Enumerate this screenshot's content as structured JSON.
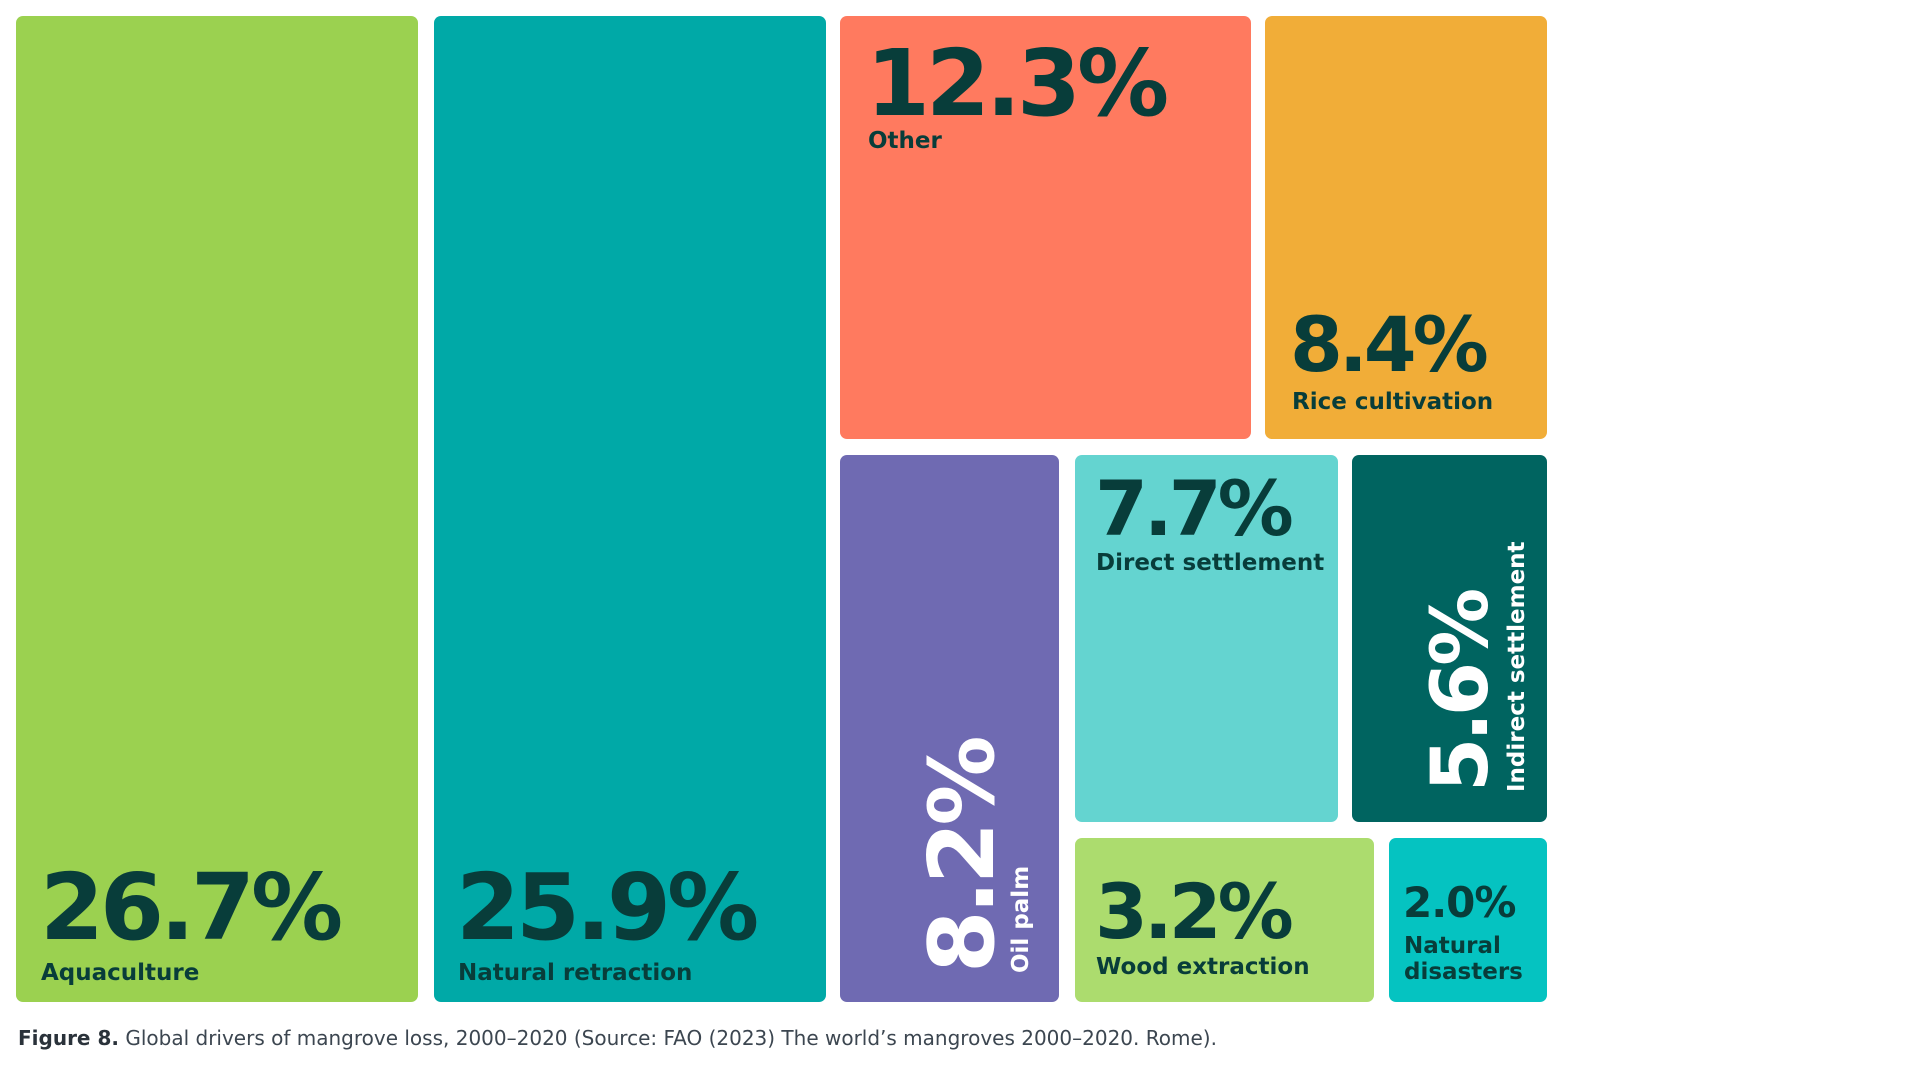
{
  "chart_data": {
    "type": "treemap",
    "unit": "%",
    "items": [
      {
        "label": "Aquaculture",
        "value": 26.7,
        "value_text": "26.7%",
        "color": "#9bd150",
        "text_color": "#083d3a"
      },
      {
        "label": "Natural retraction",
        "value": 25.9,
        "value_text": "25.9%",
        "color": "#00a9a7",
        "text_color": "#083d3a"
      },
      {
        "label": "Other",
        "value": 12.3,
        "value_text": "12.3%",
        "color": "#ff7a5f",
        "text_color": "#083d3a"
      },
      {
        "label": "Rice cultivation",
        "value": 8.4,
        "value_text": "8.4%",
        "color": "#f1ad38",
        "text_color": "#083d3a"
      },
      {
        "label": "Oil palm",
        "value": 8.2,
        "value_text": "8.2%",
        "color": "#6f6ab2",
        "text_color": "#ffffff"
      },
      {
        "label": "Direct settlement",
        "value": 7.7,
        "value_text": "7.7%",
        "color": "#64d4d0",
        "text_color": "#083d3a"
      },
      {
        "label": "Indirect settlement",
        "value": 5.6,
        "value_text": "5.6%",
        "color": "#006460",
        "text_color": "#ffffff"
      },
      {
        "label": "Wood extraction",
        "value": 3.2,
        "value_text": "3.2%",
        "color": "#acdc6e",
        "text_color": "#083d3a"
      },
      {
        "label": "Natural disasters",
        "value": 2.0,
        "value_text": "2.0%",
        "color": "#05c3c1",
        "text_color": "#083d3a"
      }
    ]
  },
  "caption": {
    "bold": "Figure 8.",
    "text": " Global drivers of mangrove loss, 2000–2020 (Source: FAO (2023) The world’s mangroves 2000–2020. Rome)."
  }
}
